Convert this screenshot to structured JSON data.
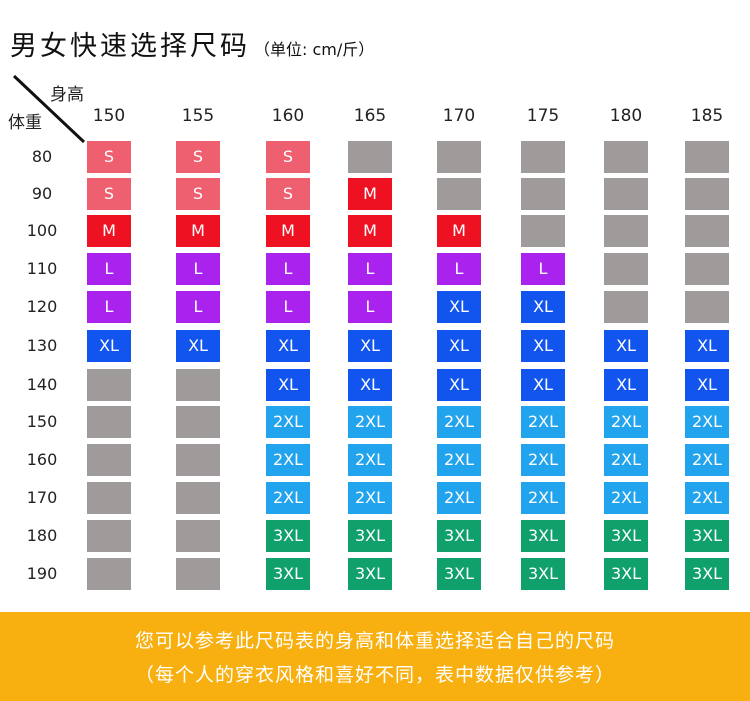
{
  "title": "男女快速选择尺码",
  "unit_note": "（单位: cm/斤）",
  "header": {
    "height_label": "身高",
    "weight_label": "体重"
  },
  "heights": [
    "150",
    "155",
    "160",
    "165",
    "170",
    "175",
    "180",
    "185"
  ],
  "weights": [
    "80",
    "90",
    "100",
    "110",
    "120",
    "130",
    "140",
    "150",
    "160",
    "170",
    "180",
    "190"
  ],
  "grid": [
    [
      "S",
      "S",
      "S",
      "",
      "",
      "",
      "",
      ""
    ],
    [
      "S",
      "S",
      "S",
      "M",
      "",
      "",
      "",
      ""
    ],
    [
      "M",
      "M",
      "M",
      "M",
      "M",
      "",
      "",
      ""
    ],
    [
      "L",
      "L",
      "L",
      "L",
      "L",
      "L",
      "",
      ""
    ],
    [
      "L",
      "L",
      "L",
      "L",
      "XL",
      "XL",
      "",
      ""
    ],
    [
      "XL",
      "XL",
      "XL",
      "XL",
      "XL",
      "XL",
      "XL",
      "XL"
    ],
    [
      "",
      "",
      "XL",
      "XL",
      "XL",
      "XL",
      "XL",
      "XL"
    ],
    [
      "",
      "",
      "2XL",
      "2XL",
      "2XL",
      "2XL",
      "2XL",
      "2XL"
    ],
    [
      "",
      "",
      "2XL",
      "2XL",
      "2XL",
      "2XL",
      "2XL",
      "2XL"
    ],
    [
      "",
      "",
      "2XL",
      "2XL",
      "2XL",
      "2XL",
      "2XL",
      "2XL"
    ],
    [
      "",
      "",
      "3XL",
      "3XL",
      "3XL",
      "3XL",
      "3XL",
      "3XL"
    ],
    [
      "",
      "",
      "3XL",
      "3XL",
      "3XL",
      "3XL",
      "3XL",
      "3XL"
    ]
  ],
  "colors": {
    "S": "#ee5f6f",
    "M": "#ee1122",
    "L": "#aa22ee",
    "XL": "#1155ee",
    "2XL": "#22a3ee",
    "3XL": "#0fa06c",
    "empty": "#a09b9b",
    "footer": "#f8b010"
  },
  "footer": {
    "line1": "您可以参考此尺码表的身高和体重选择适合自己的尺码",
    "line2": "（每个人的穿衣风格和喜好不同，表中数据仅供参考）"
  }
}
